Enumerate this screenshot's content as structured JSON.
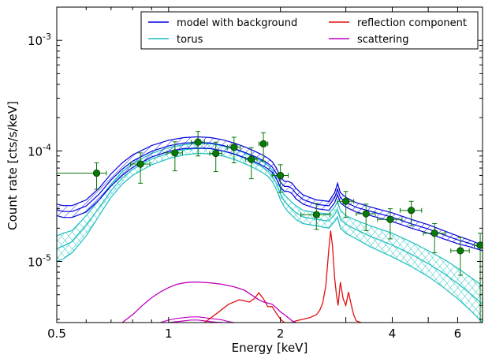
{
  "chart_data": {
    "type": "line",
    "xlabel": "Energy [keV]",
    "ylabel": "Count rate [cts/s/keV]",
    "xscale": "log",
    "yscale": "log",
    "xlim": [
      0.5,
      7.0
    ],
    "ylim": [
      2.8e-06,
      0.002
    ],
    "x_ticks": [
      {
        "value": 0.5,
        "label": "0.5"
      },
      {
        "value": 1,
        "label": "1"
      },
      {
        "value": 2,
        "label": "2"
      },
      {
        "value": 4,
        "label": "4"
      },
      {
        "value": 6,
        "label": "6"
      }
    ],
    "y_ticks": [
      {
        "value": 1e-05,
        "base": "10",
        "exp": "-5"
      },
      {
        "value": 0.0001,
        "base": "10",
        "exp": "-4"
      },
      {
        "value": 0.001,
        "base": "10",
        "exp": "-3"
      }
    ],
    "legend_position": "top-right",
    "grid": false,
    "series": [
      {
        "name": "model with background",
        "color": "#0000dd",
        "style": "hatched-band",
        "x": [
          0.5,
          0.52,
          0.55,
          0.6,
          0.65,
          0.7,
          0.75,
          0.8,
          0.9,
          1.0,
          1.1,
          1.2,
          1.3,
          1.4,
          1.5,
          1.6,
          1.7,
          1.8,
          1.85,
          1.9,
          1.95,
          2.0,
          2.05,
          2.1,
          2.15,
          2.2,
          2.3,
          2.5,
          2.7,
          2.8,
          2.85,
          2.9,
          3.0,
          3.2,
          3.5,
          4.0,
          4.5,
          5.0,
          5.5,
          6.0,
          6.5,
          7.0
        ],
        "y_low": [
          2.6e-05,
          2.5e-05,
          2.5e-05,
          2.8e-05,
          3.6e-05,
          4.8e-05,
          6e-05,
          7.1e-05,
          8.8e-05,
          9.9e-05,
          0.000105,
          0.000106,
          0.000105,
          0.0001,
          9.4e-05,
          8.7e-05,
          8e-05,
          7.3e-05,
          6.9e-05,
          6.4e-05,
          5.6e-05,
          4.7e-05,
          4.3e-05,
          4.3e-05,
          4.1e-05,
          3.7e-05,
          3.3e-05,
          3e-05,
          2.9e-05,
          3.4e-05,
          4e-05,
          3.4e-05,
          3.1e-05,
          2.8e-05,
          2.6e-05,
          2.3e-05,
          2e-05,
          1.8e-05,
          1.6e-05,
          1.45e-05,
          1.35e-05,
          1.25e-05
        ],
        "y_high": [
          3.3e-05,
          3.2e-05,
          3.2e-05,
          3.6e-05,
          4.6e-05,
          6.2e-05,
          7.8e-05,
          9.2e-05,
          0.000112,
          0.000125,
          0.000132,
          0.000134,
          0.000132,
          0.000126,
          0.000118,
          0.000109,
          0.0001,
          9.1e-05,
          8.6e-05,
          8e-05,
          7e-05,
          5.8e-05,
          5.3e-05,
          5.3e-05,
          5.1e-05,
          4.6e-05,
          4e-05,
          3.6e-05,
          3.5e-05,
          4.2e-05,
          5.1e-05,
          4.2e-05,
          3.8e-05,
          3.4e-05,
          3.1e-05,
          2.75e-05,
          2.4e-05,
          2.15e-05,
          1.9e-05,
          1.7e-05,
          1.55e-05,
          1.4e-05
        ]
      },
      {
        "name": "torus",
        "color": "#1cbfbf",
        "style": "hatched-band",
        "x": [
          0.5,
          0.52,
          0.55,
          0.6,
          0.65,
          0.7,
          0.75,
          0.8,
          0.9,
          1.0,
          1.1,
          1.2,
          1.3,
          1.4,
          1.5,
          1.6,
          1.7,
          1.8,
          1.85,
          1.9,
          1.95,
          2.0,
          2.05,
          2.1,
          2.15,
          2.2,
          2.3,
          2.5,
          2.7,
          2.8,
          2.85,
          2.9,
          3.0,
          3.2,
          3.5,
          4.0,
          4.5,
          5.0,
          5.5,
          6.0,
          6.5,
          7.0
        ],
        "y_low": [
          1e-05,
          1.05e-05,
          1.2e-05,
          1.7e-05,
          2.6e-05,
          3.8e-05,
          5e-05,
          6e-05,
          7.5e-05,
          8.5e-05,
          9.2e-05,
          9.5e-05,
          9.4e-05,
          9e-05,
          8.4e-05,
          7.7e-05,
          7e-05,
          6.3e-05,
          5.9e-05,
          5.3e-05,
          4.5e-05,
          3.6e-05,
          3.1e-05,
          2.8e-05,
          2.6e-05,
          2.4e-05,
          2.2e-05,
          2.1e-05,
          2e-05,
          2.3e-05,
          2.5e-05,
          2e-05,
          1.8e-05,
          1.6e-05,
          1.35e-05,
          1.1e-05,
          9e-06,
          7.3e-06,
          5.8e-06,
          4.6e-06,
          3.6e-06,
          2.8e-06
        ],
        "y_high": [
          1.7e-05,
          1.8e-05,
          1.9e-05,
          2.6e-05,
          3.6e-05,
          5e-05,
          6.5e-05,
          7.7e-05,
          9.5e-05,
          0.000107,
          0.000114,
          0.000117,
          0.000116,
          0.000111,
          0.000104,
          9.6e-05,
          8.7e-05,
          7.9e-05,
          7.4e-05,
          6.7e-05,
          5.7e-05,
          4.6e-05,
          4e-05,
          3.7e-05,
          3.4e-05,
          3.2e-05,
          2.9e-05,
          2.75e-05,
          2.7e-05,
          3.1e-05,
          3.5e-05,
          2.9e-05,
          2.6e-05,
          2.35e-05,
          2.1e-05,
          1.8e-05,
          1.5e-05,
          1.25e-05,
          1.05e-05,
          8.7e-06,
          7.2e-06,
          6e-06
        ]
      },
      {
        "name": "reflection component",
        "color": "#e01010",
        "style": "line",
        "x": [
          1.25,
          1.35,
          1.45,
          1.55,
          1.65,
          1.7,
          1.75,
          1.8,
          1.85,
          1.9,
          1.95,
          2.0,
          2.05,
          2.1,
          2.15,
          2.2,
          2.3,
          2.4,
          2.5,
          2.55,
          2.6,
          2.65,
          2.7,
          2.73,
          2.76,
          2.8,
          2.83,
          2.86,
          2.9,
          2.95,
          3.0,
          3.05,
          3.1,
          3.15,
          3.2,
          3.3
        ],
        "y": [
          2.8e-06,
          3.4e-06,
          4.1e-06,
          4.5e-06,
          4.3e-06,
          4.6e-06,
          5.2e-06,
          4.6e-06,
          3.9e-06,
          3.9e-06,
          3.4e-06,
          3e-06,
          2.8e-06,
          2.8e-06,
          2.8e-06,
          2.9e-06,
          3e-06,
          3.1e-06,
          3.3e-06,
          3.6e-06,
          4.2e-06,
          6e-06,
          1.3e-05,
          1.9e-05,
          1.4e-05,
          7e-06,
          5e-06,
          4e-06,
          6.5e-06,
          4.6e-06,
          4e-06,
          5.3e-06,
          4.1e-06,
          3.3e-06,
          2.9e-06,
          2.8e-06
        ]
      },
      {
        "name": "scattering",
        "color": "#c000c0",
        "style": "line",
        "x": [
          0.75,
          0.8,
          0.85,
          0.9,
          0.95,
          1.0,
          1.05,
          1.1,
          1.15,
          1.2,
          1.3,
          1.4,
          1.5,
          1.6,
          1.7,
          1.75,
          1.8,
          1.85,
          1.9,
          1.95,
          2.0,
          2.05,
          2.1,
          2.15,
          2.2
        ],
        "y": [
          2.8e-06,
          3.3e-06,
          4e-06,
          4.7e-06,
          5.3e-06,
          5.8e-06,
          6.2e-06,
          6.4e-06,
          6.5e-06,
          6.5e-06,
          6.4e-06,
          6.2e-06,
          5.9e-06,
          5.5e-06,
          4.8e-06,
          4.5e-06,
          4.3e-06,
          4.2e-06,
          4.1e-06,
          3.8e-06,
          3.5e-06,
          3.3e-06,
          3.1e-06,
          2.9e-06,
          2.8e-06
        ]
      }
    ],
    "minor_components": [
      {
        "color": "#c000c0",
        "x": [
          0.95,
          1.0,
          1.05,
          1.1,
          1.15,
          1.2,
          1.25,
          1.3,
          1.35,
          1.4,
          1.45,
          1.5
        ],
        "y": [
          2.8e-06,
          2.95e-06,
          3.05e-06,
          3.1e-06,
          3.15e-06,
          3.15e-06,
          3.1e-06,
          3.05e-06,
          3e-06,
          2.95e-06,
          2.85e-06,
          2.8e-06
        ]
      },
      {
        "color": "#c000c0",
        "x": [
          1.0,
          1.05,
          1.1,
          1.15,
          1.2,
          1.25,
          1.3,
          1.35,
          1.4
        ],
        "y": [
          2.8e-06,
          2.85e-06,
          2.9e-06,
          2.95e-06,
          2.95e-06,
          2.9e-06,
          2.85e-06,
          2.82e-06,
          2.8e-06
        ]
      }
    ],
    "data_points": {
      "color": "#087a08",
      "points": [
        {
          "x": 0.64,
          "y": 6.3e-05,
          "xerr": [
            0.14,
            0.04
          ],
          "yerr": [
            1.8e-05,
            1.5e-05
          ]
        },
        {
          "x": 0.84,
          "y": 7.6e-05,
          "xerr": [
            0.05,
            0.05
          ],
          "yerr": [
            2.5e-05,
            2e-05
          ]
        },
        {
          "x": 1.04,
          "y": 9.6e-05,
          "xerr": [
            0.05,
            0.05
          ],
          "yerr": [
            3e-05,
            2.5e-05
          ]
        },
        {
          "x": 1.2,
          "y": 0.00012,
          "xerr": [
            0.05,
            0.05
          ],
          "yerr": [
            3e-05,
            3e-05
          ]
        },
        {
          "x": 1.34,
          "y": 9.5e-05,
          "xerr": [
            0.05,
            0.05
          ],
          "yerr": [
            3e-05,
            2.5e-05
          ]
        },
        {
          "x": 1.5,
          "y": 0.000108,
          "xerr": [
            0.06,
            0.06
          ],
          "yerr": [
            3e-05,
            2.5e-05
          ]
        },
        {
          "x": 1.67,
          "y": 8.4e-05,
          "xerr": [
            0.06,
            0.06
          ],
          "yerr": [
            2.8e-05,
            2.3e-05
          ]
        },
        {
          "x": 1.8,
          "y": 0.000116,
          "xerr": [
            0.05,
            0.05
          ],
          "yerr": [
            3.5e-05,
            3e-05
          ]
        },
        {
          "x": 2.0,
          "y": 6e-05,
          "xerr": [
            0.1,
            0.1
          ],
          "yerr": [
            1.8e-05,
            1.5e-05
          ]
        },
        {
          "x": 2.5,
          "y": 2.65e-05,
          "xerr": [
            0.23,
            0.22
          ],
          "yerr": [
            7e-06,
            7e-06
          ]
        },
        {
          "x": 3.0,
          "y": 3.5e-05,
          "xerr": [
            0.15,
            0.15
          ],
          "yerr": [
            1e-05,
            8e-06
          ]
        },
        {
          "x": 3.4,
          "y": 2.7e-05,
          "xerr": [
            0.2,
            0.2
          ],
          "yerr": [
            8e-06,
            6e-06
          ]
        },
        {
          "x": 3.95,
          "y": 2.4e-05,
          "xerr": [
            0.3,
            0.3
          ],
          "yerr": [
            8e-06,
            6e-06
          ]
        },
        {
          "x": 4.5,
          "y": 2.9e-05,
          "xerr": [
            0.3,
            0.3
          ],
          "yerr": [
            8e-06,
            6e-06
          ]
        },
        {
          "x": 5.2,
          "y": 1.8e-05,
          "xerr": [
            0.35,
            0.35
          ],
          "yerr": [
            6e-06,
            4e-06
          ]
        },
        {
          "x": 6.1,
          "y": 1.25e-05,
          "xerr": [
            0.35,
            0.35
          ],
          "yerr": [
            5e-06,
            4e-06
          ]
        },
        {
          "x": 6.9,
          "y": 1.4e-05,
          "xerr": [
            0.25,
            0.1
          ],
          "yerr": [
            1.2e-05,
            4e-06
          ]
        }
      ]
    }
  }
}
